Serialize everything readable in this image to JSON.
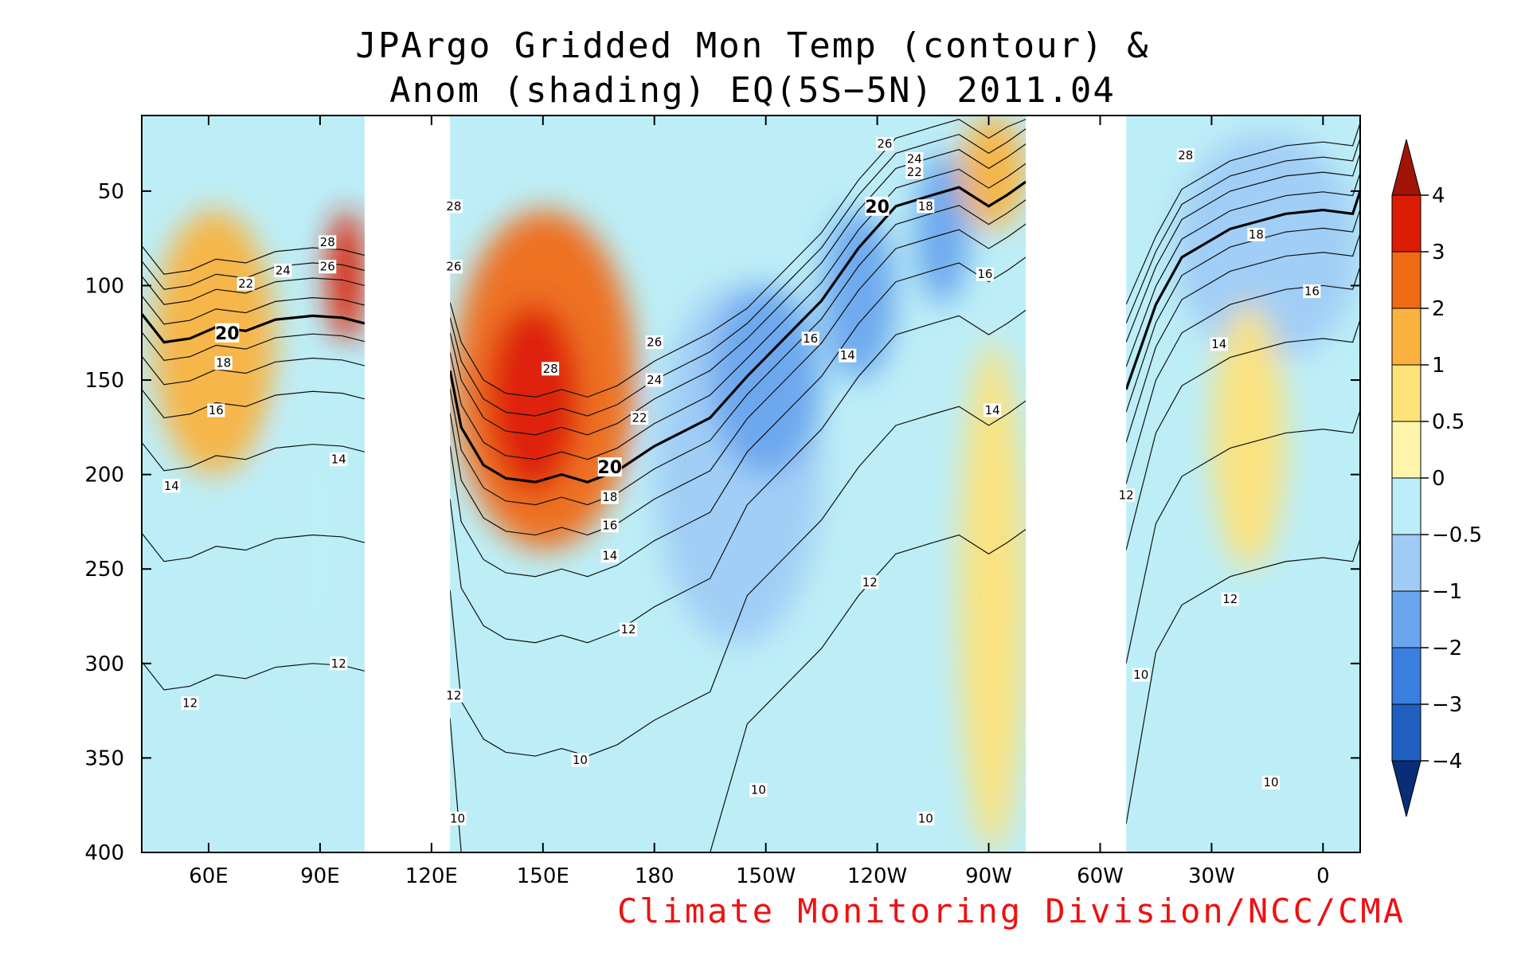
{
  "chart_data": {
    "type": "heatmap",
    "title_lines": [
      "JPArgo Gridded Mon Temp (contour) &",
      "Anom (shading) EQ(5S−5N) 2011.04"
    ],
    "credit": "Climate Monitoring Division/NCC/CMA",
    "x_axis": {
      "range_lon_east": [
        42,
        370
      ],
      "ticks": [
        {
          "lon": 60,
          "label": "60E"
        },
        {
          "lon": 90,
          "label": "90E"
        },
        {
          "lon": 120,
          "label": "120E"
        },
        {
          "lon": 150,
          "label": "150E"
        },
        {
          "lon": 180,
          "label": "180"
        },
        {
          "lon": 210,
          "label": "150W"
        },
        {
          "lon": 240,
          "label": "120W"
        },
        {
          "lon": 270,
          "label": "90W"
        },
        {
          "lon": 300,
          "label": "60W"
        },
        {
          "lon": 330,
          "label": "30W"
        },
        {
          "lon": 360,
          "label": "0"
        }
      ]
    },
    "y_axis": {
      "range": [
        10,
        400
      ],
      "reversed": true,
      "ticks": [
        50,
        100,
        150,
        200,
        250,
        300,
        350,
        400
      ],
      "tick_labels": [
        "50",
        "100",
        "150",
        "200",
        "250",
        "300",
        "350",
        "400"
      ]
    },
    "no_data_lon_ranges": [
      [
        102,
        125
      ],
      [
        280,
        307
      ]
    ],
    "colorbar": {
      "levels": [
        "−4",
        "−3",
        "−2",
        "−1",
        "−0.5",
        "0",
        "0.5",
        "1",
        "2",
        "3",
        "4"
      ],
      "colors": [
        "#0a2d78",
        "#1e5fc0",
        "#3a7ee0",
        "#6aa5ee",
        "#9fcbf5",
        "#bdeef7",
        "#fff5aa",
        "#fde27a",
        "#f9b23e",
        "#f06a14",
        "#dd1c06",
        "#a01405"
      ]
    },
    "anomaly_regions": [
      {
        "value": 1.0,
        "lon": [
          45,
          78
        ],
        "depth": [
          60,
          200
        ]
      },
      {
        "value": 3.5,
        "lon": [
          92,
          102
        ],
        "depth": [
          60,
          130
        ]
      },
      {
        "value": -0.5,
        "lon": [
          78,
          102
        ],
        "depth": [
          150,
          320
        ]
      },
      {
        "value": 2.0,
        "lon": [
          126,
          175
        ],
        "depth": [
          60,
          240
        ]
      },
      {
        "value": 3.0,
        "lon": [
          135,
          160
        ],
        "depth": [
          110,
          210
        ]
      },
      {
        "value": -1.0,
        "lon": [
          180,
          225
        ],
        "depth": [
          100,
          290
        ]
      },
      {
        "value": -2.0,
        "lon": [
          195,
          225
        ],
        "depth": [
          100,
          200
        ]
      },
      {
        "value": -2.0,
        "lon": [
          225,
          245
        ],
        "depth": [
          60,
          150
        ]
      },
      {
        "value": -2.0,
        "lon": [
          250,
          265
        ],
        "depth": [
          30,
          110
        ]
      },
      {
        "value": 0.5,
        "lon": [
          262,
          280
        ],
        "depth": [
          130,
          400
        ]
      },
      {
        "value": 1.0,
        "lon": [
          262,
          280
        ],
        "depth": [
          10,
          70
        ]
      },
      {
        "value": -1.0,
        "lon": [
          320,
          370
        ],
        "depth": [
          20,
          140
        ]
      },
      {
        "value": 0.5,
        "lon": [
          330,
          350
        ],
        "depth": [
          110,
          250
        ]
      }
    ],
    "contour_labels": [
      {
        "text": "28",
        "lon": 92,
        "depth": 77
      },
      {
        "text": "26",
        "lon": 92,
        "depth": 90
      },
      {
        "text": "24",
        "lon": 80,
        "depth": 92
      },
      {
        "text": "22",
        "lon": 70,
        "depth": 99
      },
      {
        "text": "20",
        "lon": 65,
        "depth": 125,
        "bold": true
      },
      {
        "text": "18",
        "lon": 64,
        "depth": 141
      },
      {
        "text": "16",
        "lon": 62,
        "depth": 166
      },
      {
        "text": "14",
        "lon": 95,
        "depth": 192
      },
      {
        "text": "14",
        "lon": 50,
        "depth": 206
      },
      {
        "text": "12",
        "lon": 95,
        "depth": 300
      },
      {
        "text": "12",
        "lon": 55,
        "depth": 321
      },
      {
        "text": "28",
        "lon": 126,
        "depth": 58
      },
      {
        "text": "26",
        "lon": 126,
        "depth": 90
      },
      {
        "text": "28",
        "lon": 152,
        "depth": 144
      },
      {
        "text": "26",
        "lon": 180,
        "depth": 130
      },
      {
        "text": "24",
        "lon": 180,
        "depth": 150
      },
      {
        "text": "22",
        "lon": 176,
        "depth": 170
      },
      {
        "text": "20",
        "lon": 168,
        "depth": 196,
        "bold": true
      },
      {
        "text": "18",
        "lon": 168,
        "depth": 212
      },
      {
        "text": "16",
        "lon": 168,
        "depth": 227
      },
      {
        "text": "14",
        "lon": 168,
        "depth": 243
      },
      {
        "text": "12",
        "lon": 173,
        "depth": 282
      },
      {
        "text": "12",
        "lon": 126,
        "depth": 317
      },
      {
        "text": "10",
        "lon": 127,
        "depth": 382
      },
      {
        "text": "10",
        "lon": 160,
        "depth": 351
      },
      {
        "text": "10",
        "lon": 208,
        "depth": 367
      },
      {
        "text": "10",
        "lon": 253,
        "depth": 382
      },
      {
        "text": "12",
        "lon": 238,
        "depth": 257
      },
      {
        "text": "16",
        "lon": 222,
        "depth": 128
      },
      {
        "text": "14",
        "lon": 232,
        "depth": 137
      },
      {
        "text": "26",
        "lon": 242,
        "depth": 25
      },
      {
        "text": "24",
        "lon": 250,
        "depth": 33
      },
      {
        "text": "22",
        "lon": 250,
        "depth": 40
      },
      {
        "text": "20",
        "lon": 240,
        "depth": 58,
        "bold": true
      },
      {
        "text": "18",
        "lon": 253,
        "depth": 58
      },
      {
        "text": "16",
        "lon": 269,
        "depth": 94
      },
      {
        "text": "14",
        "lon": 271,
        "depth": 166
      },
      {
        "text": "28",
        "lon": 323,
        "depth": 31
      },
      {
        "text": "18",
        "lon": 342,
        "depth": 73
      },
      {
        "text": "16",
        "lon": 357,
        "depth": 103
      },
      {
        "text": "14",
        "lon": 332,
        "depth": 131
      },
      {
        "text": "12",
        "lon": 307,
        "depth": 211
      },
      {
        "text": "12",
        "lon": 335,
        "depth": 266
      },
      {
        "text": "10",
        "lon": 311,
        "depth": 306
      },
      {
        "text": "10",
        "lon": 346,
        "depth": 363
      }
    ],
    "contour_20_line": [
      {
        "lon": 42,
        "depth": 115
      },
      {
        "lon": 48,
        "depth": 130
      },
      {
        "lon": 55,
        "depth": 128
      },
      {
        "lon": 62,
        "depth": 122
      },
      {
        "lon": 70,
        "depth": 124
      },
      {
        "lon": 78,
        "depth": 118
      },
      {
        "lon": 88,
        "depth": 116
      },
      {
        "lon": 96,
        "depth": 117
      },
      {
        "lon": 102,
        "depth": 120
      },
      {
        "lon": 125,
        "depth": 145
      },
      {
        "lon": 128,
        "depth": 175
      },
      {
        "lon": 134,
        "depth": 195
      },
      {
        "lon": 140,
        "depth": 202
      },
      {
        "lon": 148,
        "depth": 204
      },
      {
        "lon": 155,
        "depth": 200
      },
      {
        "lon": 162,
        "depth": 204
      },
      {
        "lon": 170,
        "depth": 198
      },
      {
        "lon": 180,
        "depth": 185
      },
      {
        "lon": 195,
        "depth": 170
      },
      {
        "lon": 205,
        "depth": 148
      },
      {
        "lon": 215,
        "depth": 128
      },
      {
        "lon": 225,
        "depth": 108
      },
      {
        "lon": 235,
        "depth": 80
      },
      {
        "lon": 245,
        "depth": 58
      },
      {
        "lon": 255,
        "depth": 52
      },
      {
        "lon": 262,
        "depth": 48
      },
      {
        "lon": 270,
        "depth": 58
      },
      {
        "lon": 275,
        "depth": 52
      },
      {
        "lon": 280,
        "depth": 45
      },
      {
        "lon": 307,
        "depth": 155
      },
      {
        "lon": 315,
        "depth": 110
      },
      {
        "lon": 322,
        "depth": 85
      },
      {
        "lon": 335,
        "depth": 70
      },
      {
        "lon": 350,
        "depth": 62
      },
      {
        "lon": 360,
        "depth": 60
      },
      {
        "lon": 368,
        "depth": 62
      },
      {
        "lon": 370,
        "depth": 50
      }
    ]
  }
}
